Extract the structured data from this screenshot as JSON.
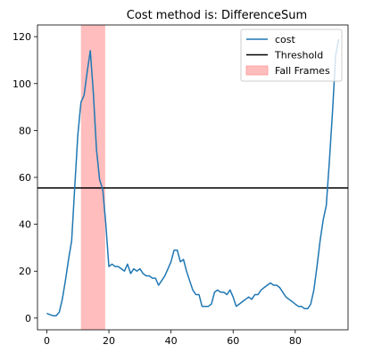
{
  "chart_data": {
    "type": "line",
    "title": "Cost method is: DifferenceSum",
    "xlabel": "",
    "ylabel": "",
    "xlim": [
      -3,
      97
    ],
    "ylim": [
      -5,
      125
    ],
    "x_ticks": [
      0,
      20,
      40,
      60,
      80
    ],
    "x_tick_labels": [
      "0",
      "20",
      "40",
      "60",
      "80"
    ],
    "y_ticks": [
      0,
      20,
      40,
      60,
      80,
      100,
      120
    ],
    "y_tick_labels": [
      "0",
      "20",
      "40",
      "60",
      "80",
      "100",
      "120"
    ],
    "grid": false,
    "legend_position": "upper right",
    "series": [
      {
        "name": "cost",
        "color": "#1f77b4",
        "x": [
          0,
          1,
          2,
          3,
          4,
          5,
          6,
          7,
          8,
          9,
          10,
          11,
          12,
          13,
          14,
          15,
          16,
          17,
          18,
          19,
          20,
          21,
          22,
          23,
          24,
          25,
          26,
          27,
          28,
          29,
          30,
          31,
          32,
          33,
          34,
          35,
          36,
          37,
          38,
          39,
          40,
          41,
          42,
          43,
          44,
          45,
          46,
          47,
          48,
          49,
          50,
          51,
          52,
          53,
          54,
          55,
          56,
          57,
          58,
          59,
          60,
          61,
          62,
          63,
          64,
          65,
          66,
          67,
          68,
          69,
          70,
          71,
          72,
          73,
          74,
          75,
          76,
          77,
          78,
          79,
          80,
          81,
          82,
          83,
          84,
          85,
          86,
          87,
          88,
          89,
          90,
          91,
          92,
          93,
          94
        ],
        "values": [
          2,
          1.5,
          1,
          1,
          2.5,
          8,
          16,
          25,
          33,
          56,
          78,
          92,
          95,
          105,
          114,
          96,
          72,
          59,
          55,
          40,
          22,
          23,
          22,
          22,
          21,
          20,
          23,
          19,
          21,
          20,
          21,
          19,
          18,
          18,
          17,
          17,
          14,
          16,
          18,
          21,
          24,
          29,
          29,
          24,
          25,
          20,
          16,
          12,
          10,
          10,
          5,
          5,
          5,
          6,
          11,
          12,
          11,
          11,
          10,
          12,
          9,
          5,
          6,
          7,
          8,
          9,
          8,
          10,
          10,
          12,
          13,
          14,
          15,
          14,
          14,
          13,
          11,
          9,
          8,
          7,
          6,
          5,
          5,
          4,
          4,
          6,
          12,
          22,
          33,
          42,
          48,
          67,
          88,
          112,
          119
        ]
      },
      {
        "name": "Threshold",
        "type": "hline",
        "color": "#000000",
        "y": 55.5
      },
      {
        "name": "Fall Frames",
        "type": "span",
        "color": "#ff9999",
        "x_start": 11,
        "x_end": 18.8
      }
    ]
  }
}
